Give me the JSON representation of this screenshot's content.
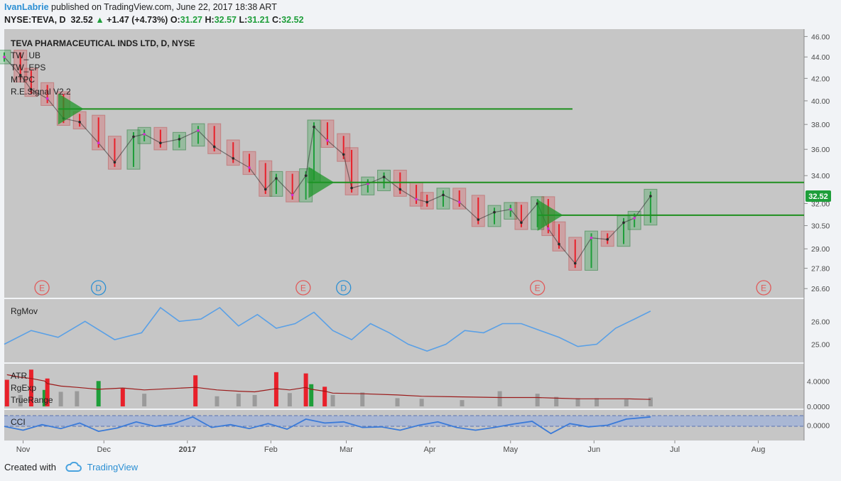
{
  "header": {
    "author": "IvanLabrie",
    "published": "published on TradingView.com, June 22, 2017 18:38 ART",
    "symbol": "NYSE:TEVA, D",
    "last": "32.52",
    "change": "+1.47 (+4.73%)",
    "o_label": "O:",
    "o_value": "31.27",
    "h_label": "H:",
    "h_value": "32.57",
    "l_label": "L:",
    "l_value": "31.21",
    "c_label": "C:",
    "c_value": "32.52"
  },
  "main_pane": {
    "title": "TEVA PHARMACEUTICAL INDS LTD, D, NYSE",
    "indicators": [
      "TW_UB",
      "TW_EPS",
      "MTPC",
      "R.E.Signal V2.2"
    ],
    "price_tag": "32.52",
    "earnings_markers": [
      {
        "date": "2016-11-08",
        "letter": "E"
      },
      {
        "date": "2016-11-29",
        "letter": "D"
      },
      {
        "date": "2017-02-13",
        "letter": "E"
      },
      {
        "date": "2017-02-28",
        "letter": "D"
      },
      {
        "date": "2017-05-11",
        "letter": "E"
      },
      {
        "date": "2017-08-03",
        "letter": "E"
      }
    ]
  },
  "rgmov_pane": {
    "title": "RgMov"
  },
  "atr_pane": {
    "titles": [
      "ATR",
      "RgExp",
      "TrueRange"
    ]
  },
  "cci_pane": {
    "title": "CCI"
  },
  "footer": {
    "created": "Created with",
    "brand": "TradingView"
  },
  "colors": {
    "up": "#1e9e3a",
    "down": "#e8202a",
    "line": "#5aa0e6",
    "cci": "#3a7ad8",
    "atr_line": "#9b1a1a",
    "level": "#1e8f1e"
  },
  "chart_data": [
    {
      "type": "line",
      "name": "price",
      "x_axis": {
        "start": "2016-10-25",
        "end": "2017-08-18",
        "ticks": [
          {
            "date": "2016-11-01",
            "label": "Nov"
          },
          {
            "date": "2016-12-01",
            "label": "Dec"
          },
          {
            "date": "2017-01-01",
            "label": "2017"
          },
          {
            "date": "2017-02-01",
            "label": "Feb"
          },
          {
            "date": "2017-03-01",
            "label": "Mar"
          },
          {
            "date": "2017-04-01",
            "label": "Apr"
          },
          {
            "date": "2017-05-01",
            "label": "May"
          },
          {
            "date": "2017-06-01",
            "label": "Jun"
          },
          {
            "date": "2017-07-01",
            "label": "Jul"
          },
          {
            "date": "2017-08-01",
            "label": "Aug"
          }
        ]
      },
      "y_ticks": [
        "46.00",
        "44.00",
        "42.00",
        "40.00",
        "38.00",
        "36.00",
        "34.00",
        "32.00",
        "30.50",
        "29.00",
        "27.80",
        "26.60"
      ],
      "y_scale": "log",
      "ylim": [
        26.2,
        46.6
      ],
      "horizontal_levels": [
        {
          "value": 39.3,
          "from": "2016-11-14",
          "to": "2017-05-24"
        },
        {
          "value": 33.5,
          "from": "2017-02-15",
          "to": "2017-08-18"
        },
        {
          "value": 31.2,
          "from": "2017-05-11",
          "to": "2017-08-18"
        }
      ],
      "x": [
        "2016-10-25",
        "2016-10-31",
        "2016-11-04",
        "2016-11-10",
        "2016-11-16",
        "2016-11-22",
        "2016-11-29",
        "2016-12-05",
        "2016-12-12",
        "2016-12-16",
        "2016-12-22",
        "2016-12-29",
        "2017-01-05",
        "2017-01-11",
        "2017-01-18",
        "2017-01-24",
        "2017-01-30",
        "2017-02-03",
        "2017-02-09",
        "2017-02-14",
        "2017-02-17",
        "2017-02-22",
        "2017-02-28",
        "2017-03-03",
        "2017-03-09",
        "2017-03-15",
        "2017-03-21",
        "2017-03-27",
        "2017-03-31",
        "2017-04-06",
        "2017-04-12",
        "2017-04-19",
        "2017-04-25",
        "2017-05-01",
        "2017-05-05",
        "2017-05-11",
        "2017-05-15",
        "2017-05-19",
        "2017-05-25",
        "2017-05-31",
        "2017-06-06",
        "2017-06-12",
        "2017-06-16",
        "2017-06-22"
      ],
      "y": [
        44.0,
        42.3,
        41.0,
        40.2,
        38.5,
        38.2,
        36.5,
        35.0,
        37.0,
        37.2,
        36.5,
        36.8,
        37.5,
        36.2,
        35.3,
        34.6,
        33.0,
        33.8,
        32.6,
        34.0,
        37.8,
        36.7,
        35.6,
        33.1,
        33.4,
        33.9,
        33.0,
        32.3,
        32.1,
        32.6,
        32.1,
        30.9,
        31.4,
        31.6,
        30.7,
        32.0,
        30.3,
        29.3,
        28.1,
        29.7,
        29.6,
        30.7,
        31.0,
        32.52
      ]
    },
    {
      "type": "line",
      "name": "RgMov",
      "y_ticks": [
        "26.00",
        "25.00"
      ],
      "ylim": [
        24.3,
        26.85
      ],
      "x": [
        "2016-10-25",
        "2016-11-04",
        "2016-11-14",
        "2016-11-24",
        "2016-12-05",
        "2016-12-15",
        "2016-12-22",
        "2016-12-29",
        "2017-01-06",
        "2017-01-13",
        "2017-01-20",
        "2017-01-27",
        "2017-02-03",
        "2017-02-10",
        "2017-02-17",
        "2017-02-24",
        "2017-03-03",
        "2017-03-10",
        "2017-03-17",
        "2017-03-24",
        "2017-03-31",
        "2017-04-07",
        "2017-04-14",
        "2017-04-21",
        "2017-04-28",
        "2017-05-05",
        "2017-05-12",
        "2017-05-19",
        "2017-05-26",
        "2017-06-02",
        "2017-06-09",
        "2017-06-16",
        "2017-06-22"
      ],
      "y": [
        25.0,
        25.6,
        25.3,
        26.0,
        25.2,
        25.5,
        26.6,
        26.0,
        26.1,
        26.6,
        25.8,
        26.3,
        25.7,
        25.9,
        26.4,
        25.6,
        25.2,
        25.9,
        25.5,
        25.0,
        24.7,
        25.0,
        25.6,
        25.5,
        25.9,
        25.9,
        25.6,
        25.3,
        24.9,
        25.0,
        25.7,
        26.1,
        26.45
      ]
    },
    {
      "type": "bar",
      "name": "TrueRange",
      "y_ticks": [
        "4.0000",
        "0.0000"
      ],
      "ylim": [
        0,
        6.5
      ],
      "x": [
        "2016-10-26",
        "2016-10-31",
        "2016-11-04",
        "2016-11-09",
        "2016-11-10",
        "2016-11-15",
        "2016-11-21",
        "2016-11-29",
        "2016-12-08",
        "2016-12-16",
        "2017-01-04",
        "2017-01-12",
        "2017-01-20",
        "2017-01-26",
        "2017-02-03",
        "2017-02-08",
        "2017-02-14",
        "2017-02-16",
        "2017-02-21",
        "2017-02-24",
        "2017-03-07",
        "2017-03-20",
        "2017-03-29",
        "2017-04-13",
        "2017-04-27",
        "2017-05-11",
        "2017-05-18",
        "2017-05-26",
        "2017-06-02",
        "2017-06-13",
        "2017-06-22"
      ],
      "values": [
        4.2,
        1.8,
        5.8,
        2.6,
        4.4,
        2.3,
        2.4,
        4.0,
        2.8,
        2.0,
        4.9,
        1.6,
        2.0,
        1.8,
        5.4,
        2.1,
        5.2,
        3.5,
        3.1,
        1.8,
        2.2,
        1.3,
        1.2,
        1.0,
        2.4,
        2.0,
        1.5,
        1.3,
        1.3,
        1.1,
        1.4
      ],
      "atr_line": [
        5.0,
        4.6,
        4.4,
        4.0,
        3.6,
        3.2,
        3.0,
        2.7,
        2.9,
        2.6,
        3.0,
        2.6,
        2.4,
        2.3,
        2.8,
        2.6,
        3.0,
        2.7,
        2.4,
        2.1,
        2.0,
        1.8,
        1.6,
        1.5,
        1.4,
        1.4,
        1.3,
        1.2,
        1.2,
        1.2,
        1.1
      ]
    },
    {
      "type": "line",
      "name": "CCI",
      "y_ticks": [
        "0.0000"
      ],
      "bands": [
        -100,
        100
      ],
      "ylim": [
        -250,
        250
      ],
      "x": [
        "2016-10-25",
        "2016-11-01",
        "2016-11-08",
        "2016-11-15",
        "2016-11-22",
        "2016-11-29",
        "2016-12-06",
        "2016-12-13",
        "2016-12-20",
        "2016-12-27",
        "2017-01-03",
        "2017-01-10",
        "2017-01-17",
        "2017-01-24",
        "2017-01-31",
        "2017-02-07",
        "2017-02-14",
        "2017-02-21",
        "2017-02-28",
        "2017-03-07",
        "2017-03-14",
        "2017-03-21",
        "2017-03-28",
        "2017-04-04",
        "2017-04-11",
        "2017-04-18",
        "2017-04-25",
        "2017-05-02",
        "2017-05-09",
        "2017-05-16",
        "2017-05-23",
        "2017-05-30",
        "2017-06-06",
        "2017-06-13",
        "2017-06-22"
      ],
      "y": [
        -20,
        -90,
        10,
        -60,
        40,
        -110,
        -50,
        60,
        -20,
        30,
        150,
        -40,
        10,
        -60,
        30,
        -70,
        110,
        40,
        60,
        -40,
        -30,
        -90,
        0,
        60,
        -40,
        -90,
        -40,
        20,
        70,
        -150,
        30,
        -30,
        0,
        110,
        150
      ]
    }
  ]
}
